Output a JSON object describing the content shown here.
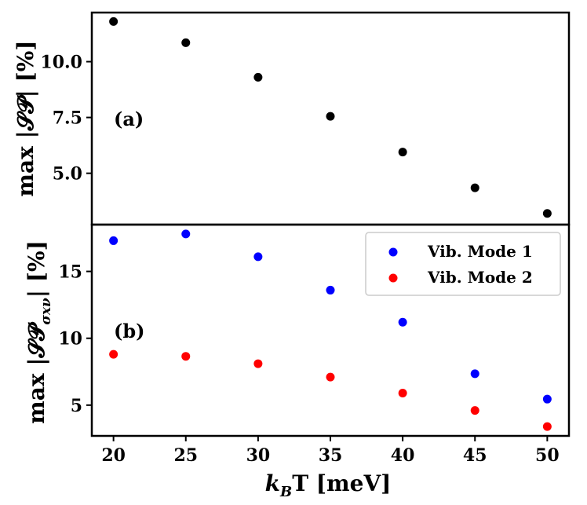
{
  "chart_data": [
    {
      "type": "scatter",
      "panel": "top",
      "panel_label": "(a)",
      "ylabel": "max |𝓢𝓟| [%]",
      "ylim": [
        2.7,
        12.2
      ],
      "yticks": [
        5.0,
        7.5,
        10.0
      ],
      "ytick_labels": [
        "5.0",
        "7.5",
        "10.0"
      ],
      "x": [
        20,
        25,
        30,
        35,
        40,
        45,
        50
      ],
      "series": [
        {
          "name": "max |SP|",
          "color": "#000000",
          "values": [
            11.8,
            10.85,
            9.3,
            7.55,
            5.95,
            4.35,
            3.2
          ]
        }
      ]
    },
    {
      "type": "scatter",
      "panel": "bottom",
      "panel_label": "(b)",
      "ylabel": "max |𝓢𝓟",
      "ylabel_sub": "σxν",
      "ylabel_tail": "| [%]",
      "xlabel": "k",
      "xlabel_sub": "B",
      "xlabel_tail": "T [meV]",
      "xlim": [
        18.5,
        51.5
      ],
      "xticks": [
        20,
        25,
        30,
        35,
        40,
        45,
        50
      ],
      "xtick_labels": [
        "20",
        "25",
        "30",
        "35",
        "40",
        "45",
        "50"
      ],
      "ylim": [
        2.7,
        18.5
      ],
      "yticks": [
        5,
        10,
        15
      ],
      "ytick_labels": [
        "5",
        "10",
        "15"
      ],
      "legend_position": "top-right",
      "x": [
        20,
        25,
        30,
        35,
        40,
        45,
        50
      ],
      "series": [
        {
          "name": "Vib. Mode 1",
          "color": "#0000ff",
          "values": [
            17.3,
            17.8,
            16.1,
            13.6,
            11.2,
            7.35,
            5.45
          ]
        },
        {
          "name": "Vib. Mode 2",
          "color": "#ff0000",
          "values": [
            8.8,
            8.65,
            8.1,
            7.1,
            5.9,
            4.6,
            3.4
          ]
        }
      ]
    }
  ]
}
